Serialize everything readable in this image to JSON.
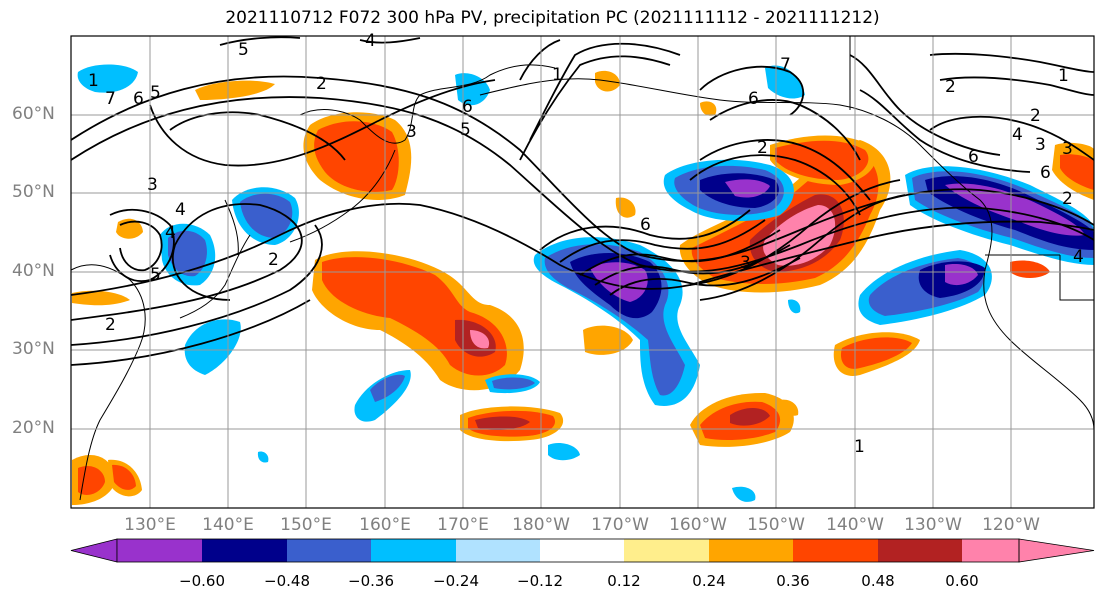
{
  "title": "2021110712 F072 300 hPa PV, precipitation PC (2021111112 - 2021111212)",
  "map": {
    "lat_labels": [
      "60°N",
      "50°N",
      "40°N",
      "30°N",
      "20°N"
    ],
    "lon_labels": [
      "130°E",
      "140°E",
      "150°E",
      "160°E",
      "170°E",
      "180°W",
      "170°W",
      "160°W",
      "150°W",
      "140°W",
      "130°W",
      "120°W"
    ],
    "contour_labels": [
      "5",
      "4",
      "2",
      "7",
      "6",
      "5",
      "3",
      "4",
      "4",
      "2",
      "1",
      "2",
      "5",
      "5",
      "6",
      "1",
      "6",
      "2",
      "7",
      "3",
      "2",
      "6",
      "3",
      "4",
      "6",
      "4",
      "3",
      "6",
      "3",
      "2",
      "1",
      "2",
      "1"
    ]
  },
  "colorbar": {
    "tick_labels": [
      "−0.60",
      "−0.48",
      "−0.36",
      "−0.24",
      "−0.12",
      "0.12",
      "0.24",
      "0.36",
      "0.48",
      "0.60"
    ],
    "colors": [
      "#9932cc",
      "#00008b",
      "#3a5fcd",
      "#00bfff",
      "#b0e2ff",
      "#ffffff",
      "#ffee8c",
      "#ffa500",
      "#ff4500",
      "#b22222",
      "#ff82ab"
    ]
  }
}
